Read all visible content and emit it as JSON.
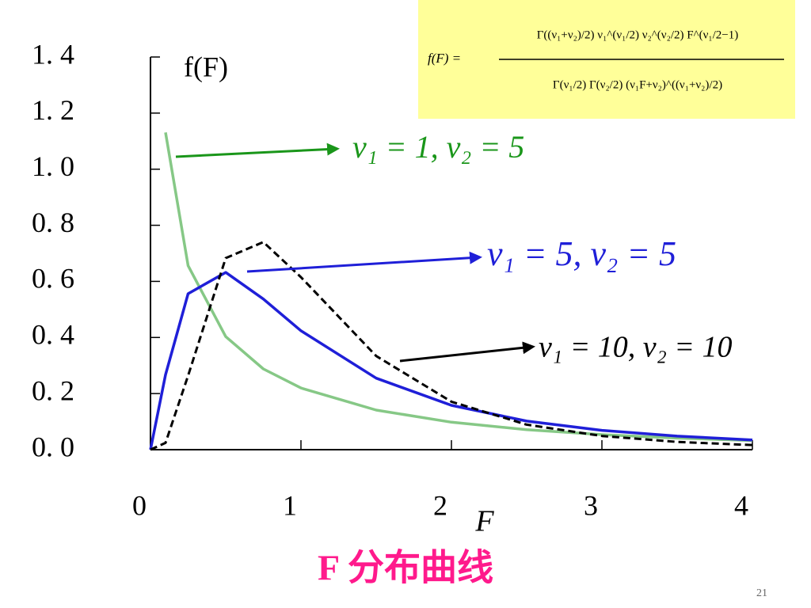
{
  "chart_data": {
    "type": "line",
    "title": "F 分布曲线",
    "x_label": "F",
    "y_label": "f(F)",
    "page_number": "21",
    "formula": {
      "lhs": "f(F) =",
      "numerator": "Γ((ν₁+ν₂)/2) ν₁^(ν₁/2) ν₂^(ν₂/2) F^(ν₁/2−1)",
      "denominator": "Γ(ν₁/2) Γ(ν₂/2) (ν₁F+ν₂)^((ν₁+ν₂)/2)"
    },
    "x": [
      0,
      0.1,
      0.25,
      0.5,
      0.75,
      1,
      1.5,
      2,
      2.5,
      3,
      3.5,
      4
    ],
    "series": [
      {
        "name": "ν₁ = 1, ν₂ = 5",
        "color": "#86c886",
        "dash": false,
        "values": [
          null,
          1.131,
          0.656,
          0.403,
          0.288,
          0.22,
          0.141,
          0.098,
          0.071,
          0.0535,
          0.0413,
          0.0325
        ]
      },
      {
        "name": "ν₁ = 5, ν₂ = 5",
        "color": "#1f1fd8",
        "dash": false,
        "values": [
          0,
          0.267,
          0.556,
          0.632,
          0.537,
          0.424,
          0.255,
          0.158,
          0.102,
          0.0689,
          0.0482,
          0.0348
        ]
      },
      {
        "name": "ν₁ = 10, ν₂ = 10",
        "color": "#000000",
        "dash": true,
        "values": [
          0,
          0.0243,
          0.264,
          0.683,
          0.74,
          0.615,
          0.334,
          0.171,
          0.0892,
          0.0487,
          0.0278,
          0.0165
        ]
      }
    ],
    "xlim": [
      0,
      4
    ],
    "ylim": [
      0,
      1.4
    ],
    "xticks": [
      0,
      1,
      2,
      3,
      4
    ],
    "yticks": [
      {
        "value": 0,
        "label": "0. 0"
      },
      {
        "value": 0.2,
        "label": "0. 2"
      },
      {
        "value": 0.4,
        "label": "0. 4"
      },
      {
        "value": 0.6,
        "label": "0. 6"
      },
      {
        "value": 0.8,
        "label": "0. 8"
      },
      {
        "value": 1,
        "label": "1. 0"
      },
      {
        "value": 1.2,
        "label": "1. 2"
      },
      {
        "value": 1.4,
        "label": "1. 4"
      }
    ]
  }
}
